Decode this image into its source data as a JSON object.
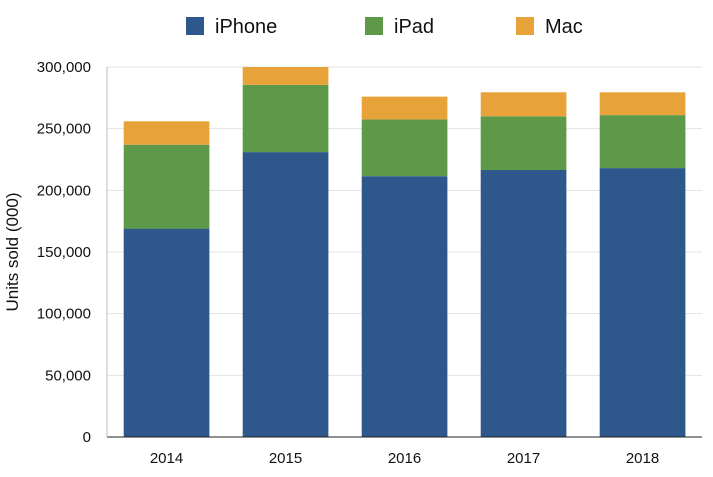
{
  "chart_data": {
    "type": "bar",
    "stacked": true,
    "categories": [
      "2014",
      "2015",
      "2016",
      "2017",
      "2018"
    ],
    "series": [
      {
        "name": "iPhone",
        "color": "#2e578c",
        "values": [
          169000,
          231000,
          211500,
          216500,
          218000
        ]
      },
      {
        "name": "iPad",
        "color": "#5d9948",
        "values": [
          68000,
          54500,
          46000,
          43500,
          43000
        ]
      },
      {
        "name": "Mac",
        "color": "#e8a23a",
        "values": [
          19000,
          14500,
          18500,
          19500,
          18500
        ]
      }
    ],
    "ylabel": "Units sold (000)",
    "xlabel": "",
    "ylim": [
      0,
      300000
    ],
    "yticks": [
      0,
      50000,
      100000,
      150000,
      200000,
      250000,
      300000
    ],
    "ytick_labels": [
      "0",
      "50,000",
      "100,000",
      "150,000",
      "200,000",
      "250,000",
      "300,000"
    ],
    "grid": true,
    "legend_position": "top-center"
  }
}
